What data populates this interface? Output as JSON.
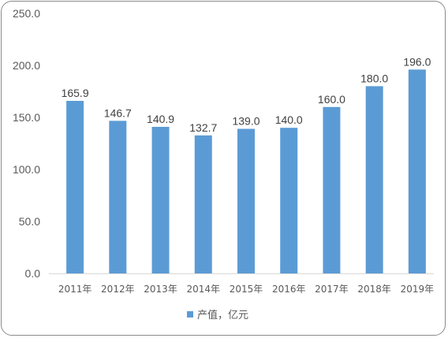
{
  "chart_data": {
    "type": "bar",
    "categories": [
      "2011年",
      "2012年",
      "2013年",
      "2014年",
      "2015年",
      "2016年",
      "2017年",
      "2018年",
      "2019年"
    ],
    "series": [
      {
        "name": "产值，亿元",
        "values": [
          165.9,
          146.7,
          140.9,
          132.7,
          139.0,
          140.0,
          160.0,
          180.0,
          196.0
        ],
        "value_labels": [
          "165.9",
          "146.7",
          "140.9",
          "132.7",
          "139.0",
          "140.0",
          "160.0",
          "180.0",
          "196.0"
        ]
      }
    ],
    "ylim": [
      0,
      250
    ],
    "yticks": [
      "0.0",
      "50.0",
      "100.0",
      "150.0",
      "200.0",
      "250.0"
    ],
    "grid": false,
    "legend": "bottom",
    "colors": {
      "bar": "#5b9bd5",
      "axis": "#d9d9d9",
      "border": "#8a8a8a"
    }
  }
}
